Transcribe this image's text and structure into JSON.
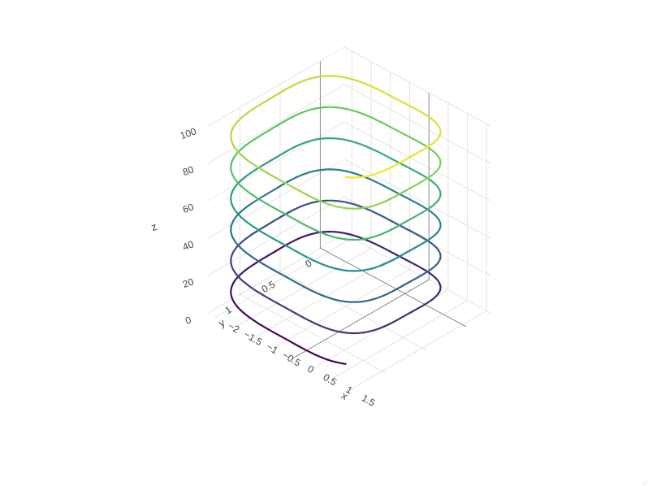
{
  "chart_data": {
    "type": "line3d",
    "title": "",
    "axes": {
      "x": {
        "label": "x",
        "ticks": [
          "−2",
          "−1.5",
          "−1",
          "−0.5",
          "0",
          "0.5",
          "1",
          "1.5"
        ],
        "range": [
          -2.2,
          1.6
        ]
      },
      "y": {
        "label": "y",
        "ticks": [
          "0",
          "0.5",
          "1"
        ],
        "range": [
          -0.3,
          1.4
        ]
      },
      "z": {
        "label": "z",
        "ticks": [
          "0",
          "20",
          "40",
          "60",
          "80",
          "100"
        ],
        "range": [
          0,
          100
        ]
      }
    },
    "grid": true,
    "legend": "none",
    "colorscale": "viridis",
    "colors": [
      "#440154",
      "#3b528b",
      "#21918c",
      "#5ec962",
      "#fde725"
    ],
    "series": [
      {
        "description": "single continuous 3D spiral line whose color follows z",
        "turns": 6,
        "z": [
          0,
          100
        ],
        "x_amplitude": 1.8,
        "y_amplitude": 1.1
      }
    ]
  },
  "ui": {
    "resize_grip_icon": "resize-grip-icon"
  }
}
